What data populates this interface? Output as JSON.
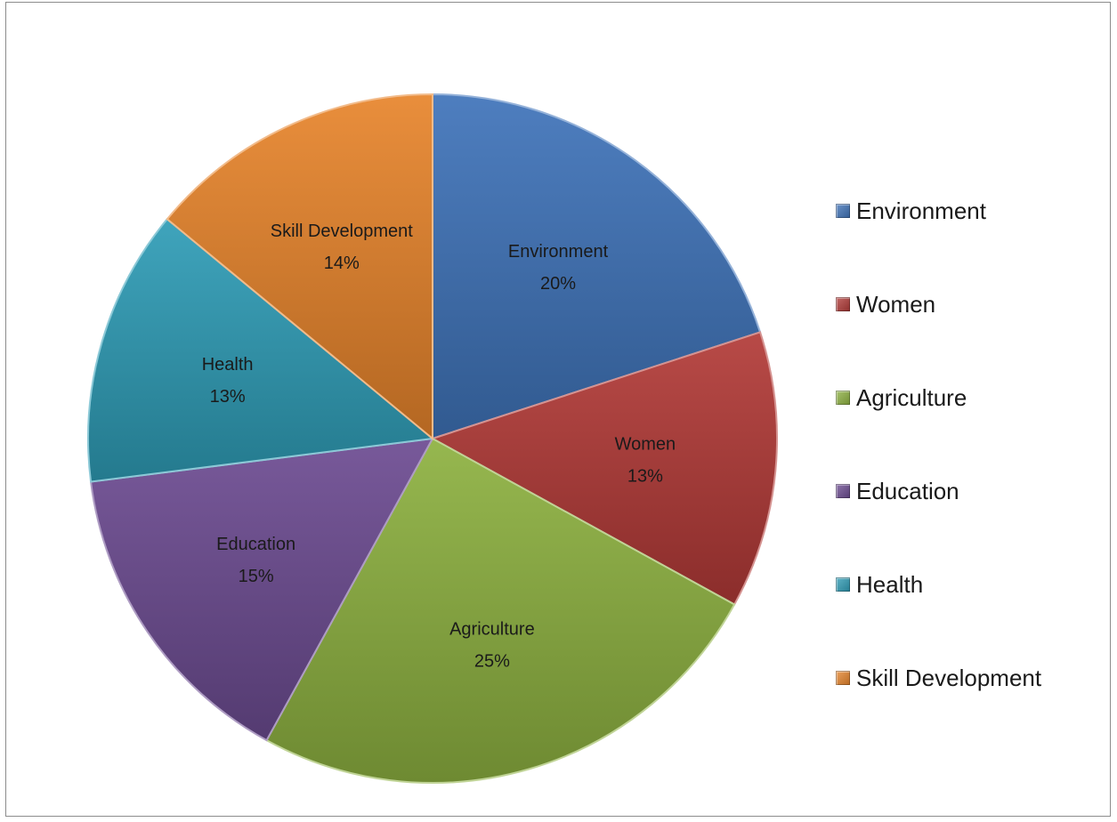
{
  "chart_data": {
    "type": "pie",
    "title": "",
    "start_angle_deg": 0,
    "direction": "clockwise",
    "legend_position": "right",
    "slices": [
      {
        "label": "Environment",
        "value": 20,
        "display": "20%",
        "color": "#3f73b9"
      },
      {
        "label": "Women",
        "value": 13,
        "display": "13%",
        "color": "#b23a37"
      },
      {
        "label": "Agriculture",
        "value": 25,
        "display": "25%",
        "color": "#8db140"
      },
      {
        "label": "Education",
        "value": 15,
        "display": "15%",
        "color": "#6c4b91"
      },
      {
        "label": "Health",
        "value": 13,
        "display": "13%",
        "color": "#2e9cb6"
      },
      {
        "label": "Skill Development",
        "value": 14,
        "display": "14%",
        "color": "#e7842b"
      }
    ]
  }
}
